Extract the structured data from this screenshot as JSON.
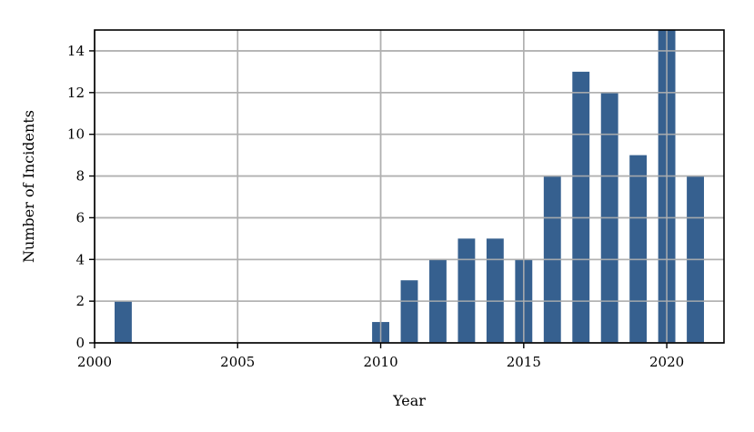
{
  "chart_data": {
    "type": "bar",
    "title": "",
    "xlabel": "Year",
    "ylabel": "Number of Incidents",
    "x": [
      2001,
      2010,
      2011,
      2012,
      2013,
      2014,
      2015,
      2016,
      2017,
      2018,
      2019,
      2020,
      2021
    ],
    "values": [
      2,
      1,
      3,
      4,
      5,
      5,
      4,
      8,
      13,
      12,
      9,
      15,
      8
    ],
    "xlim": [
      2000,
      2022
    ],
    "ylim": [
      0,
      15
    ],
    "xticks": [
      2000,
      2005,
      2010,
      2015,
      2020
    ],
    "yticks": [
      0,
      2,
      4,
      6,
      8,
      10,
      12,
      14
    ],
    "xtick_labels": [
      "2000",
      "2005",
      "2010",
      "2015",
      "2020"
    ],
    "ytick_labels": [
      "0",
      "2",
      "4",
      "6",
      "8",
      "10",
      "12",
      "14"
    ],
    "bar_color": "#36608f",
    "grid": true,
    "legend": false
  }
}
